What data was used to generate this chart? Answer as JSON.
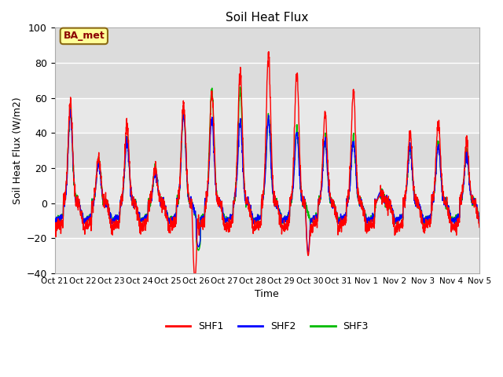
{
  "title": "Soil Heat Flux",
  "ylabel": "Soil Heat Flux (W/m2)",
  "xlabel": "Time",
  "ylim": [
    -40,
    100
  ],
  "yticks": [
    -40,
    -20,
    0,
    20,
    40,
    60,
    80,
    100
  ],
  "xtick_labels": [
    "Oct 21",
    "Oct 22",
    "Oct 23",
    "Oct 24",
    "Oct 25",
    "Oct 26",
    "Oct 27",
    "Oct 28",
    "Oct 29",
    "Oct 30",
    "Oct 31",
    "Nov 1",
    "Nov 2",
    "Nov 3",
    "Nov 4",
    "Nov 5"
  ],
  "shf1_color": "#FF0000",
  "shf2_color": "#0000FF",
  "shf3_color": "#00BB00",
  "line_width": 1.0,
  "bg_color": "#FFFFFF",
  "plot_bg_color": "#E8E8E8",
  "band_light": "#E8E8E8",
  "band_dark": "#D0D0D0",
  "grid_color": "#FFFFFF",
  "annotation_text": "BA_met",
  "annotation_bg": "#FFFF99",
  "annotation_border": "#8B6914",
  "legend_items": [
    "SHF1",
    "SHF2",
    "SHF3"
  ],
  "day_peaks_shf1": [
    58,
    27,
    45,
    20,
    57,
    64,
    76,
    85,
    75,
    51,
    64,
    5,
    40,
    47,
    35
  ],
  "day_peaks_shf2": [
    51,
    22,
    35,
    18,
    51,
    48,
    46,
    48,
    40,
    35,
    35,
    5,
    31,
    33,
    28
  ],
  "day_peaks_shf3": [
    52,
    24,
    37,
    19,
    52,
    65,
    65,
    50,
    42,
    37,
    37,
    5,
    32,
    34,
    30
  ],
  "night_base": -12,
  "night_base_red": -15
}
